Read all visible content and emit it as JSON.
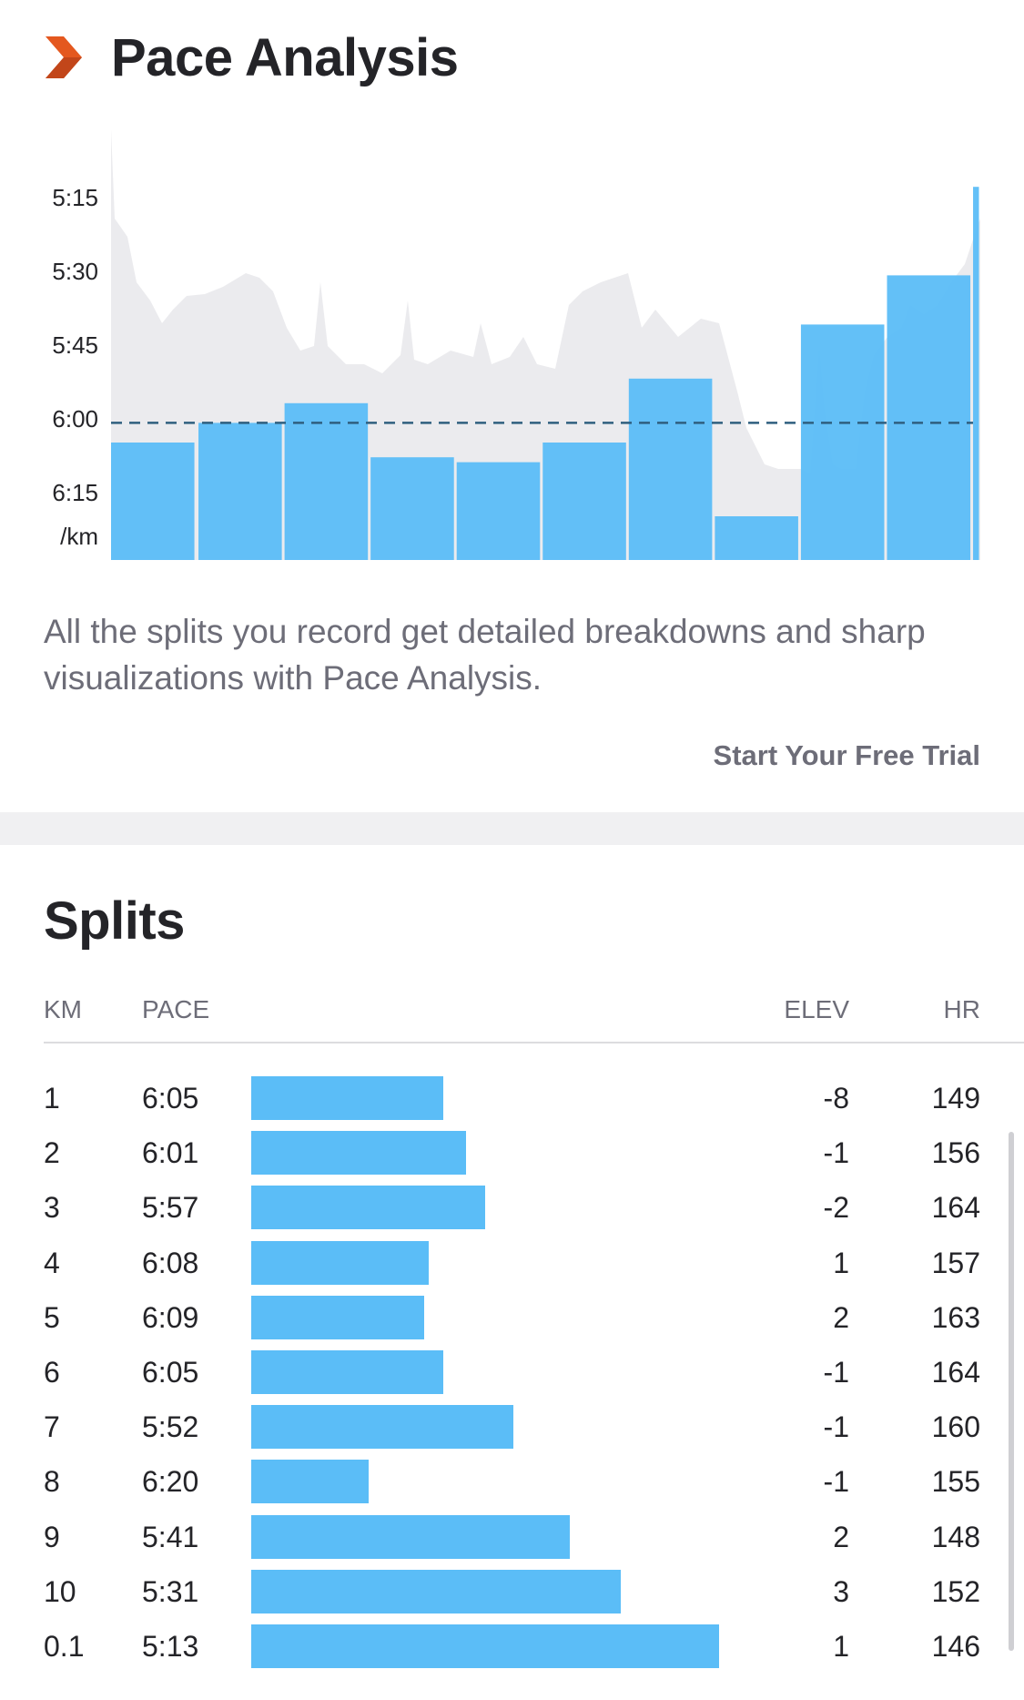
{
  "pace_analysis": {
    "title": "Pace Analysis",
    "description": "All the splits you record get detailed breakdowns and sharp visualizations with Pace Analysis.",
    "cta_label": "Start Your Free Trial",
    "accent_color": "#e4581f",
    "icon": "chevron-right-icon"
  },
  "chart_data": {
    "type": "bar",
    "ylabel": "/km",
    "y_ticks": [
      "5:15",
      "5:30",
      "5:45",
      "6:00",
      "6:15"
    ],
    "y_tick_seconds": [
      315,
      330,
      345,
      360,
      375
    ],
    "reference_line_seconds": 361,
    "categories": [
      "1",
      "2",
      "3",
      "4",
      "5",
      "6",
      "7",
      "8",
      "9",
      "10",
      "0.1"
    ],
    "values_seconds": [
      365,
      361,
      357,
      368,
      369,
      365,
      352,
      380,
      341,
      331,
      313
    ],
    "values": [
      "6:05",
      "6:01",
      "5:57",
      "6:08",
      "6:09",
      "6:05",
      "5:52",
      "6:20",
      "5:41",
      "5:31",
      "5:13"
    ],
    "bar_color": "#5bbdf7",
    "background_area_color": "#ebebee"
  },
  "splits": {
    "title": "Splits",
    "headers": {
      "km": "KM",
      "pace": "PACE",
      "elev": "ELEV",
      "hr": "HR"
    },
    "rows": [
      {
        "km": "1",
        "pace": "6:05",
        "elev": "-8",
        "hr": "149",
        "bar": 0.41
      },
      {
        "km": "2",
        "pace": "6:01",
        "elev": "-1",
        "hr": "156",
        "bar": 0.46
      },
      {
        "km": "3",
        "pace": "5:57",
        "elev": "-2",
        "hr": "164",
        "bar": 0.5
      },
      {
        "km": "4",
        "pace": "6:08",
        "elev": "1",
        "hr": "157",
        "bar": 0.38
      },
      {
        "km": "5",
        "pace": "6:09",
        "elev": "2",
        "hr": "163",
        "bar": 0.37
      },
      {
        "km": "6",
        "pace": "6:05",
        "elev": "-1",
        "hr": "164",
        "bar": 0.41
      },
      {
        "km": "7",
        "pace": "5:52",
        "elev": "-1",
        "hr": "160",
        "bar": 0.56
      },
      {
        "km": "8",
        "pace": "6:20",
        "elev": "-1",
        "hr": "155",
        "bar": 0.25
      },
      {
        "km": "9",
        "pace": "5:41",
        "elev": "2",
        "hr": "148",
        "bar": 0.68
      },
      {
        "km": "10",
        "pace": "5:31",
        "elev": "3",
        "hr": "152",
        "bar": 0.79
      },
      {
        "km": "0.1",
        "pace": "5:13",
        "elev": "1",
        "hr": "146",
        "bar": 1.0
      }
    ]
  }
}
